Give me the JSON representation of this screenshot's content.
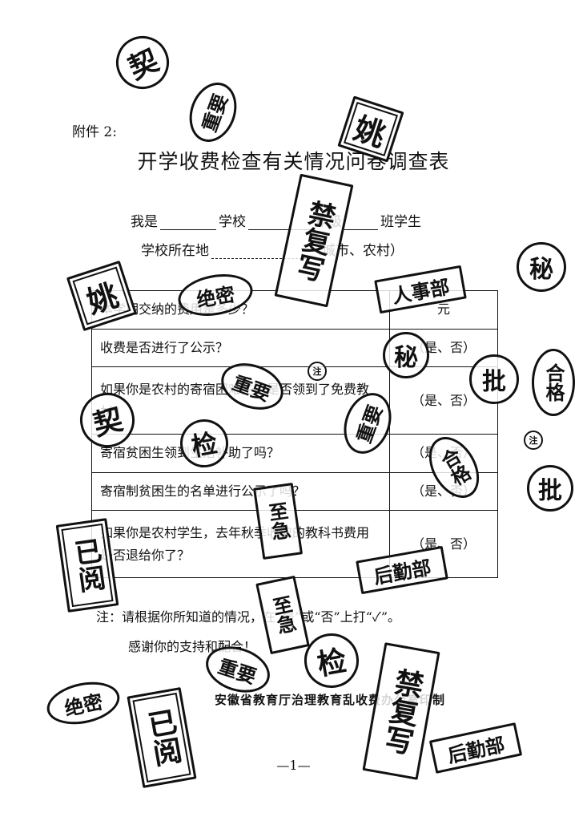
{
  "document": {
    "attachment_label": "附件 2:",
    "title": "开学收费检查有关情况问卷调查表",
    "intro": {
      "i_am": "我是",
      "school": "学校",
      "grade": "年级",
      "class_student": "班学生",
      "location_label": "学校所在地",
      "location_suffix": "（城市、农村）"
    },
    "questions": [
      {
        "q": "本学期交纳的费用是多少？",
        "a": "元"
      },
      {
        "q": "收费是否进行了公示？",
        "a": "（是、否）"
      },
      {
        "q": "如果你是农村的寄宿困难生，是否领到了免费教材？",
        "a": "（是、否）"
      },
      {
        "q": "寄宿贫困生领到生活补助了吗？",
        "a": "（是、否）"
      },
      {
        "q": "寄宿制贫困生的名单进行公示了吗？",
        "a": "（是、否）"
      },
      {
        "q": "如果你是农村学生，去年秋季收取的教科书费用是否退给你了？",
        "a": "（是、否）"
      }
    ],
    "note": "注：请根据你所知道的情况，在“是”或“否”上打“✓”。",
    "thanks": "感谢你的支持和配合！",
    "footer": "安徽省教育厅治理教育乱收费办公室印制",
    "page_number": "—1—"
  },
  "stamps": [
    {
      "text": "契",
      "name": "stamp-qi-top"
    },
    {
      "text": "重要",
      "name": "stamp-zhongyao-1"
    },
    {
      "text": "姚",
      "name": "stamp-yao-1"
    },
    {
      "text": "禁复写",
      "name": "stamp-jinfuxie-1"
    },
    {
      "text": "秘",
      "name": "stamp-mi-1"
    },
    {
      "text": "姚",
      "name": "stamp-yao-2"
    },
    {
      "text": "绝密",
      "name": "stamp-juemi-1"
    },
    {
      "text": "人事部",
      "name": "stamp-renshibu"
    },
    {
      "text": "秘",
      "name": "stamp-mi-2"
    },
    {
      "text": "批",
      "name": "stamp-pi-1"
    },
    {
      "text": "合格",
      "name": "stamp-hege-1"
    },
    {
      "text": "重要",
      "name": "stamp-zhongyao-2"
    },
    {
      "text": "注",
      "name": "stamp-zhu-1"
    },
    {
      "text": "契",
      "name": "stamp-qi-2"
    },
    {
      "text": "重要",
      "name": "stamp-zhongyao-3"
    },
    {
      "text": "检",
      "name": "stamp-jian-1"
    },
    {
      "text": "合格",
      "name": "stamp-hege-2"
    },
    {
      "text": "注",
      "name": "stamp-zhu-2"
    },
    {
      "text": "批",
      "name": "stamp-pi-2"
    },
    {
      "text": "至急",
      "name": "stamp-zhiji-1"
    },
    {
      "text": "已阅",
      "name": "stamp-yiyue-1"
    },
    {
      "text": "后勤部",
      "name": "stamp-houqinbu-1"
    },
    {
      "text": "至急",
      "name": "stamp-zhiji-2"
    },
    {
      "text": "重要",
      "name": "stamp-zhongyao-4"
    },
    {
      "text": "检",
      "name": "stamp-jian-2"
    },
    {
      "text": "禁复写",
      "name": "stamp-jinfuxie-2"
    },
    {
      "text": "绝密",
      "name": "stamp-juemi-2"
    },
    {
      "text": "已阅",
      "name": "stamp-yiyue-2"
    },
    {
      "text": "后勤部",
      "name": "stamp-houqinbu-2"
    }
  ]
}
